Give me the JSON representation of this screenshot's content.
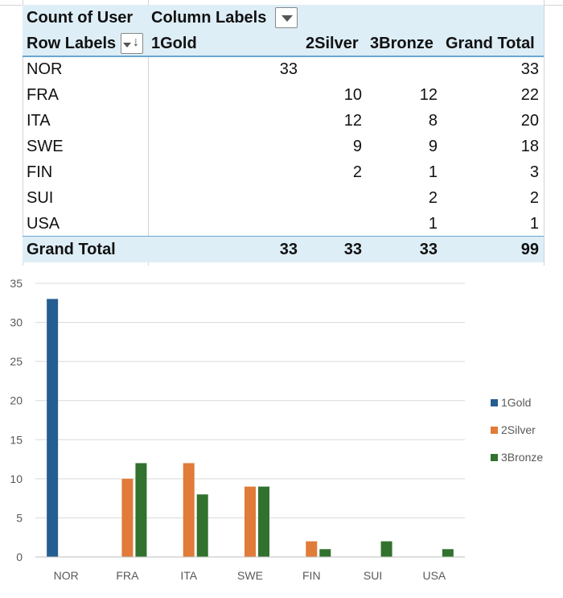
{
  "pivot": {
    "value_field": "Count of User",
    "column_labels": "Column Labels",
    "row_labels": "Row Labels",
    "columns": [
      "1Gold",
      "2Silver",
      "3Bronze",
      "Grand Total"
    ],
    "rows": [
      {
        "label": "NOR",
        "values": [
          "33",
          "",
          "",
          "33"
        ]
      },
      {
        "label": "FRA",
        "values": [
          "",
          "10",
          "12",
          "22"
        ]
      },
      {
        "label": "ITA",
        "values": [
          "",
          "12",
          "8",
          "20"
        ]
      },
      {
        "label": "SWE",
        "values": [
          "",
          "9",
          "9",
          "18"
        ]
      },
      {
        "label": "FIN",
        "values": [
          "",
          "2",
          "1",
          "3"
        ]
      },
      {
        "label": "SUI",
        "values": [
          "",
          "",
          "2",
          "2"
        ]
      },
      {
        "label": "USA",
        "values": [
          "",
          "",
          "1",
          "1"
        ]
      }
    ],
    "grand_total": {
      "label": "Grand Total",
      "values": [
        "33",
        "33",
        "33",
        "99"
      ]
    },
    "header_color": "#ddeef7",
    "accent_line_color": "#6aa6d0"
  },
  "chart_data": {
    "type": "bar",
    "title": "",
    "xlabel": "",
    "ylabel": "",
    "categories": [
      "NOR",
      "FRA",
      "ITA",
      "SWE",
      "FIN",
      "SUI",
      "USA"
    ],
    "series": [
      {
        "name": "1Gold",
        "color": "#255e91",
        "values": [
          33,
          0,
          0,
          0,
          0,
          0,
          0
        ]
      },
      {
        "name": "2Silver",
        "color": "#e07b39",
        "values": [
          0,
          10,
          12,
          9,
          2,
          0,
          0
        ]
      },
      {
        "name": "3Bronze",
        "color": "#31722e",
        "values": [
          0,
          12,
          8,
          9,
          1,
          2,
          1
        ]
      }
    ],
    "ylim": [
      0,
      35
    ],
    "yticks": [
      "0",
      "5",
      "10",
      "15",
      "20",
      "25",
      "30",
      "35"
    ],
    "grid": true,
    "legend_position": "right"
  }
}
